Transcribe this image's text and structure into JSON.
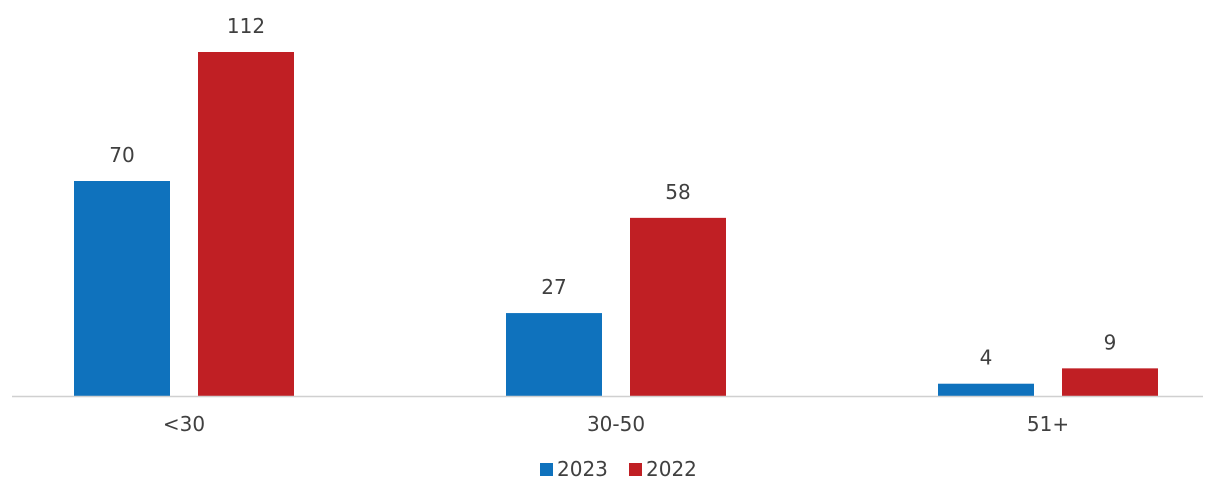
{
  "chart_data": {
    "type": "bar",
    "title": "",
    "xlabel": "",
    "ylabel": "",
    "categories": [
      "<30",
      "30-50",
      "51+"
    ],
    "series": [
      {
        "name": "2023",
        "values": [
          70,
          27,
          4
        ],
        "color": "#0f72bd"
      },
      {
        "name": "2022",
        "values": [
          112,
          58,
          9
        ],
        "color": "#c01f24"
      }
    ],
    "ylim": [
      0,
      112
    ],
    "grid": false,
    "legend_position": "bottom",
    "data_labels": true
  }
}
